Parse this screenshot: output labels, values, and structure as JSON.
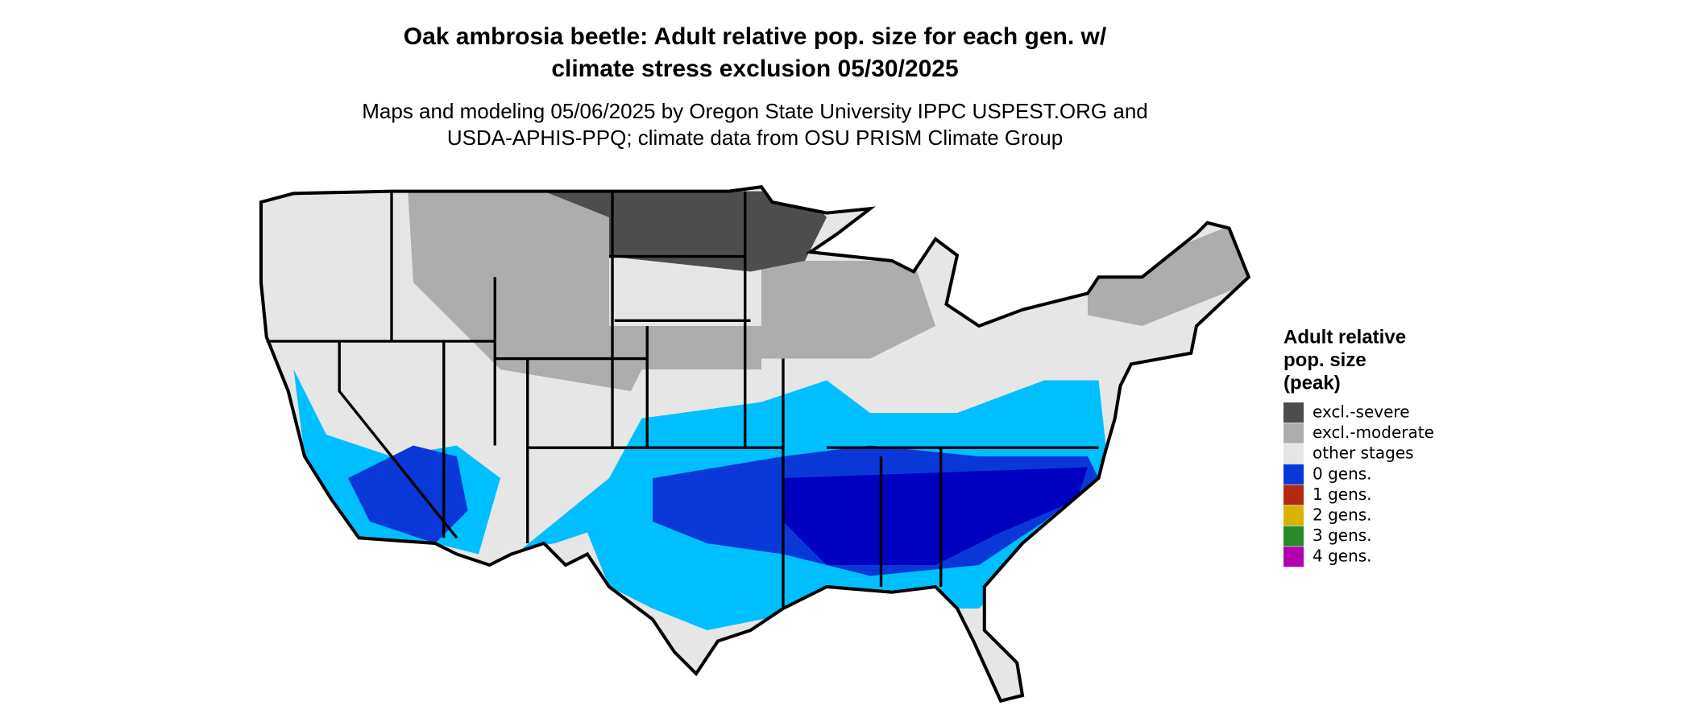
{
  "title_lines": [
    "Oak ambrosia beetle: Adult relative pop. size for each gen. w/",
    "climate stress exclusion 05/30/2025"
  ],
  "subtitle_lines": [
    "Maps and modeling 05/06/2025 by Oregon State University IPPC USPEST.ORG and",
    "USDA-APHIS-PPQ; climate data from OSU PRISM Climate Group"
  ],
  "legend": {
    "title_lines": [
      "Adult relative",
      "pop. size",
      "(peak)"
    ],
    "items": [
      {
        "label": "excl.-severe",
        "color": "#4d4d4d"
      },
      {
        "label": "excl.-moderate",
        "color": "#adadad"
      },
      {
        "label": "other stages",
        "color": "#e6e6e6"
      },
      {
        "label": "0 gens.",
        "color": "#0a38d8"
      },
      {
        "label": "1 gens.",
        "color": "#b22a12"
      },
      {
        "label": "2 gens.",
        "color": "#d8b400"
      },
      {
        "label": "3 gens.",
        "color": "#2a8a2a"
      },
      {
        "label": "4 gens.",
        "color": "#b000b0"
      }
    ]
  }
}
